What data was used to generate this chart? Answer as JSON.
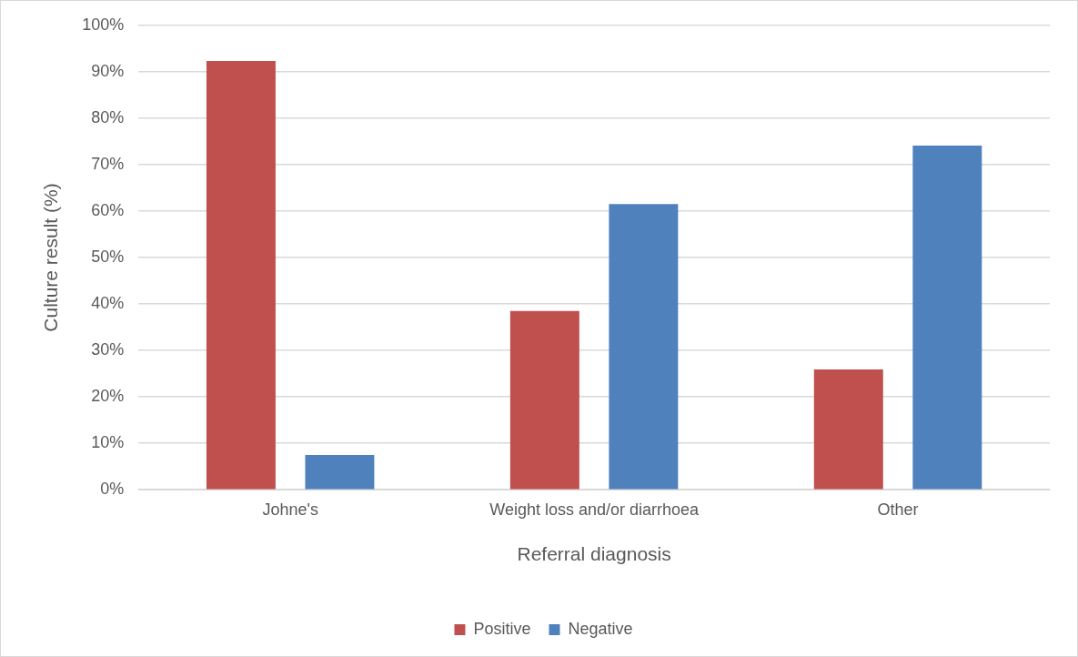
{
  "chart_data": {
    "type": "bar",
    "xlabel": "Referral diagnosis",
    "ylabel": "Culture result (%)",
    "categories": [
      "Johne's",
      "Weight loss and/or diarrhoea",
      "Other"
    ],
    "series": [
      {
        "name": "Positive",
        "color": "#c0504d",
        "values": [
          92.3,
          38.5,
          25.9
        ]
      },
      {
        "name": "Negative",
        "color": "#4f81bd",
        "values": [
          7.5,
          61.5,
          74.1
        ]
      }
    ],
    "ylim": [
      0,
      100
    ],
    "yticks": [
      {
        "value": 0,
        "label": "0%"
      },
      {
        "value": 10,
        "label": "10%"
      },
      {
        "value": 20,
        "label": "20%"
      },
      {
        "value": 30,
        "label": "30%"
      },
      {
        "value": 40,
        "label": "40%"
      },
      {
        "value": 50,
        "label": "50%"
      },
      {
        "value": 60,
        "label": "60%"
      },
      {
        "value": 70,
        "label": "70%"
      },
      {
        "value": 80,
        "label": "80%"
      },
      {
        "value": 90,
        "label": "90%"
      },
      {
        "value": 100,
        "label": "100%"
      }
    ],
    "grid": "y",
    "legend": "bottom"
  }
}
